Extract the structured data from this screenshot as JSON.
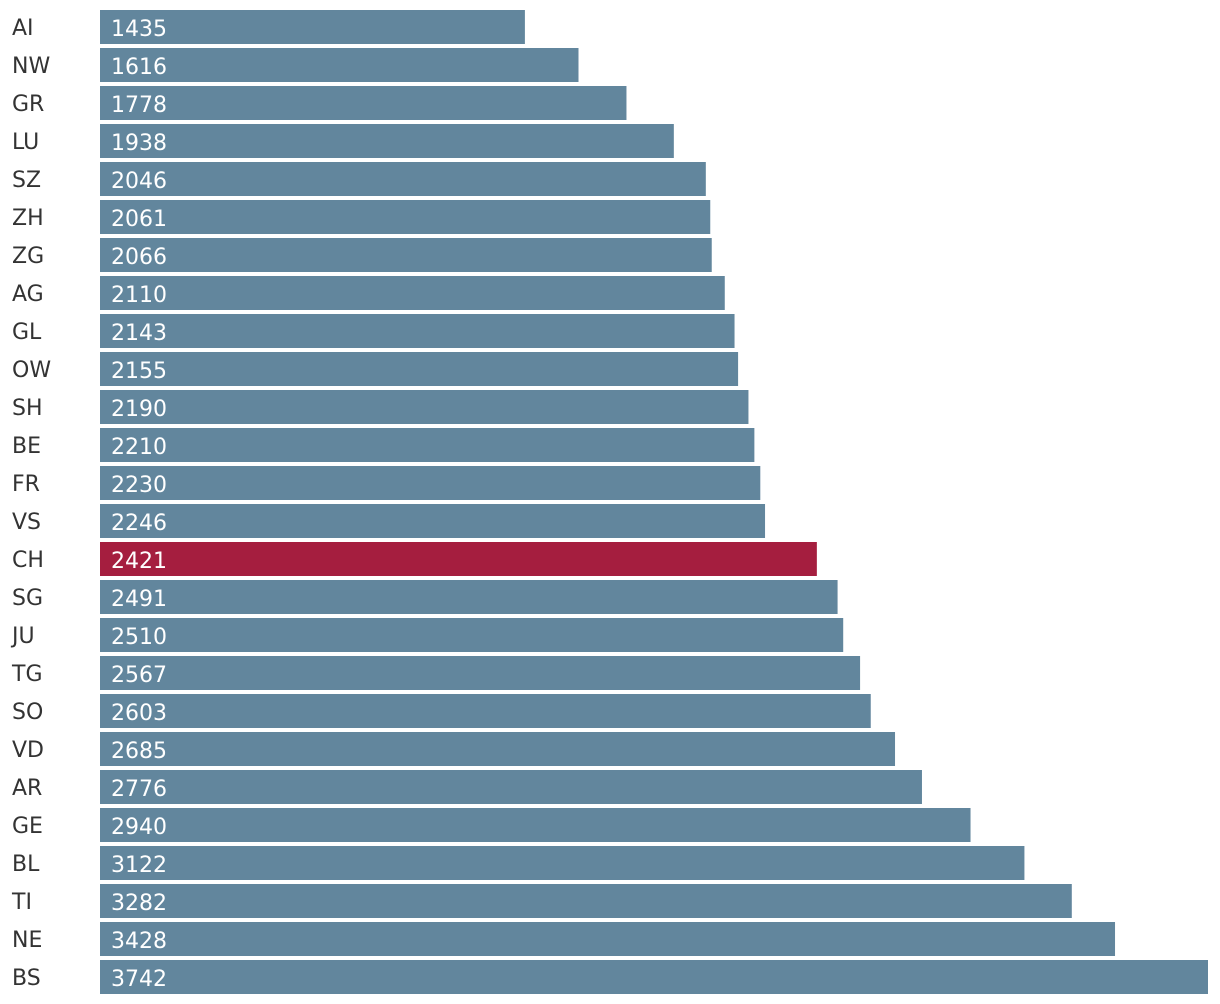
{
  "chart_data": {
    "type": "bar",
    "orientation": "horizontal",
    "title": "",
    "xlabel": "",
    "ylabel": "",
    "categories": [
      "AI",
      "NW",
      "GR",
      "LU",
      "SZ",
      "ZH",
      "ZG",
      "AG",
      "GL",
      "OW",
      "SH",
      "BE",
      "FR",
      "VS",
      "CH",
      "SG",
      "JU",
      "TG",
      "SO",
      "VD",
      "AR",
      "GE",
      "BL",
      "TI",
      "NE",
      "BS"
    ],
    "values": [
      1435,
      1616,
      1778,
      1938,
      2046,
      2061,
      2066,
      2110,
      2143,
      2155,
      2190,
      2210,
      2230,
      2246,
      2421,
      2491,
      2510,
      2567,
      2603,
      2685,
      2776,
      2940,
      3122,
      3282,
      3428,
      3742
    ],
    "xlim": [
      0,
      3742
    ],
    "highlight_category": "CH",
    "grid": false,
    "legend": "none",
    "colors": {
      "bar": "#62869d",
      "highlight": "#a51e3f",
      "value_text": "#ffffff",
      "category_text": "#333333"
    }
  }
}
